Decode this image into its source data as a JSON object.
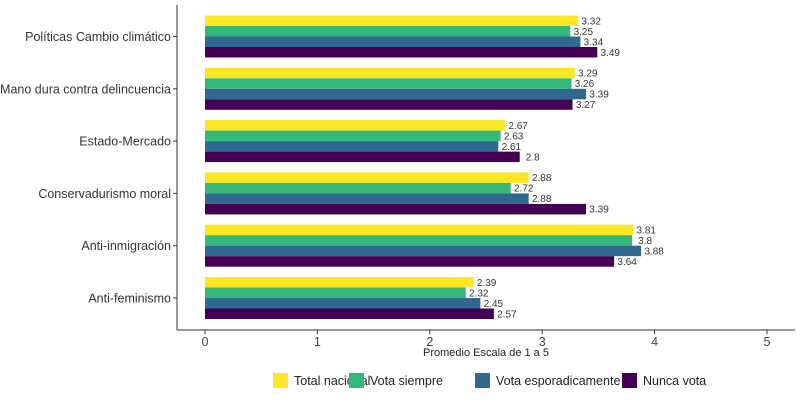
{
  "chart_data": {
    "type": "bar",
    "orientation": "horizontal",
    "title": "",
    "xlabel": "Promedio Escala de 1 a 5",
    "ylabel": "",
    "xlim": [
      0,
      5
    ],
    "xticks": [
      0,
      1,
      2,
      3,
      4,
      5
    ],
    "grid": false,
    "legend_position": "bottom",
    "categories": [
      "Políticas Cambio climático",
      "Mano dura contra delincuencia",
      "Estado-Mercado",
      "Conservadurismo moral",
      "Anti-inmigración",
      "Anti-feminismo"
    ],
    "series": [
      {
        "name": "Total nacional",
        "color": "#FDE725",
        "values": [
          3.32,
          3.29,
          2.67,
          2.88,
          3.81,
          2.39
        ]
      },
      {
        "name": "Vota siempre",
        "color": "#35B779",
        "values": [
          3.25,
          3.26,
          2.63,
          2.72,
          3.8,
          2.32
        ]
      },
      {
        "name": "Vota esporadicamente",
        "color": "#31688E",
        "values": [
          3.34,
          3.39,
          2.61,
          2.88,
          3.88,
          2.45
        ]
      },
      {
        "name": "Nunca vota",
        "color": "#440154",
        "values": [
          3.49,
          3.27,
          2.8,
          3.39,
          3.64,
          2.57
        ]
      }
    ]
  }
}
